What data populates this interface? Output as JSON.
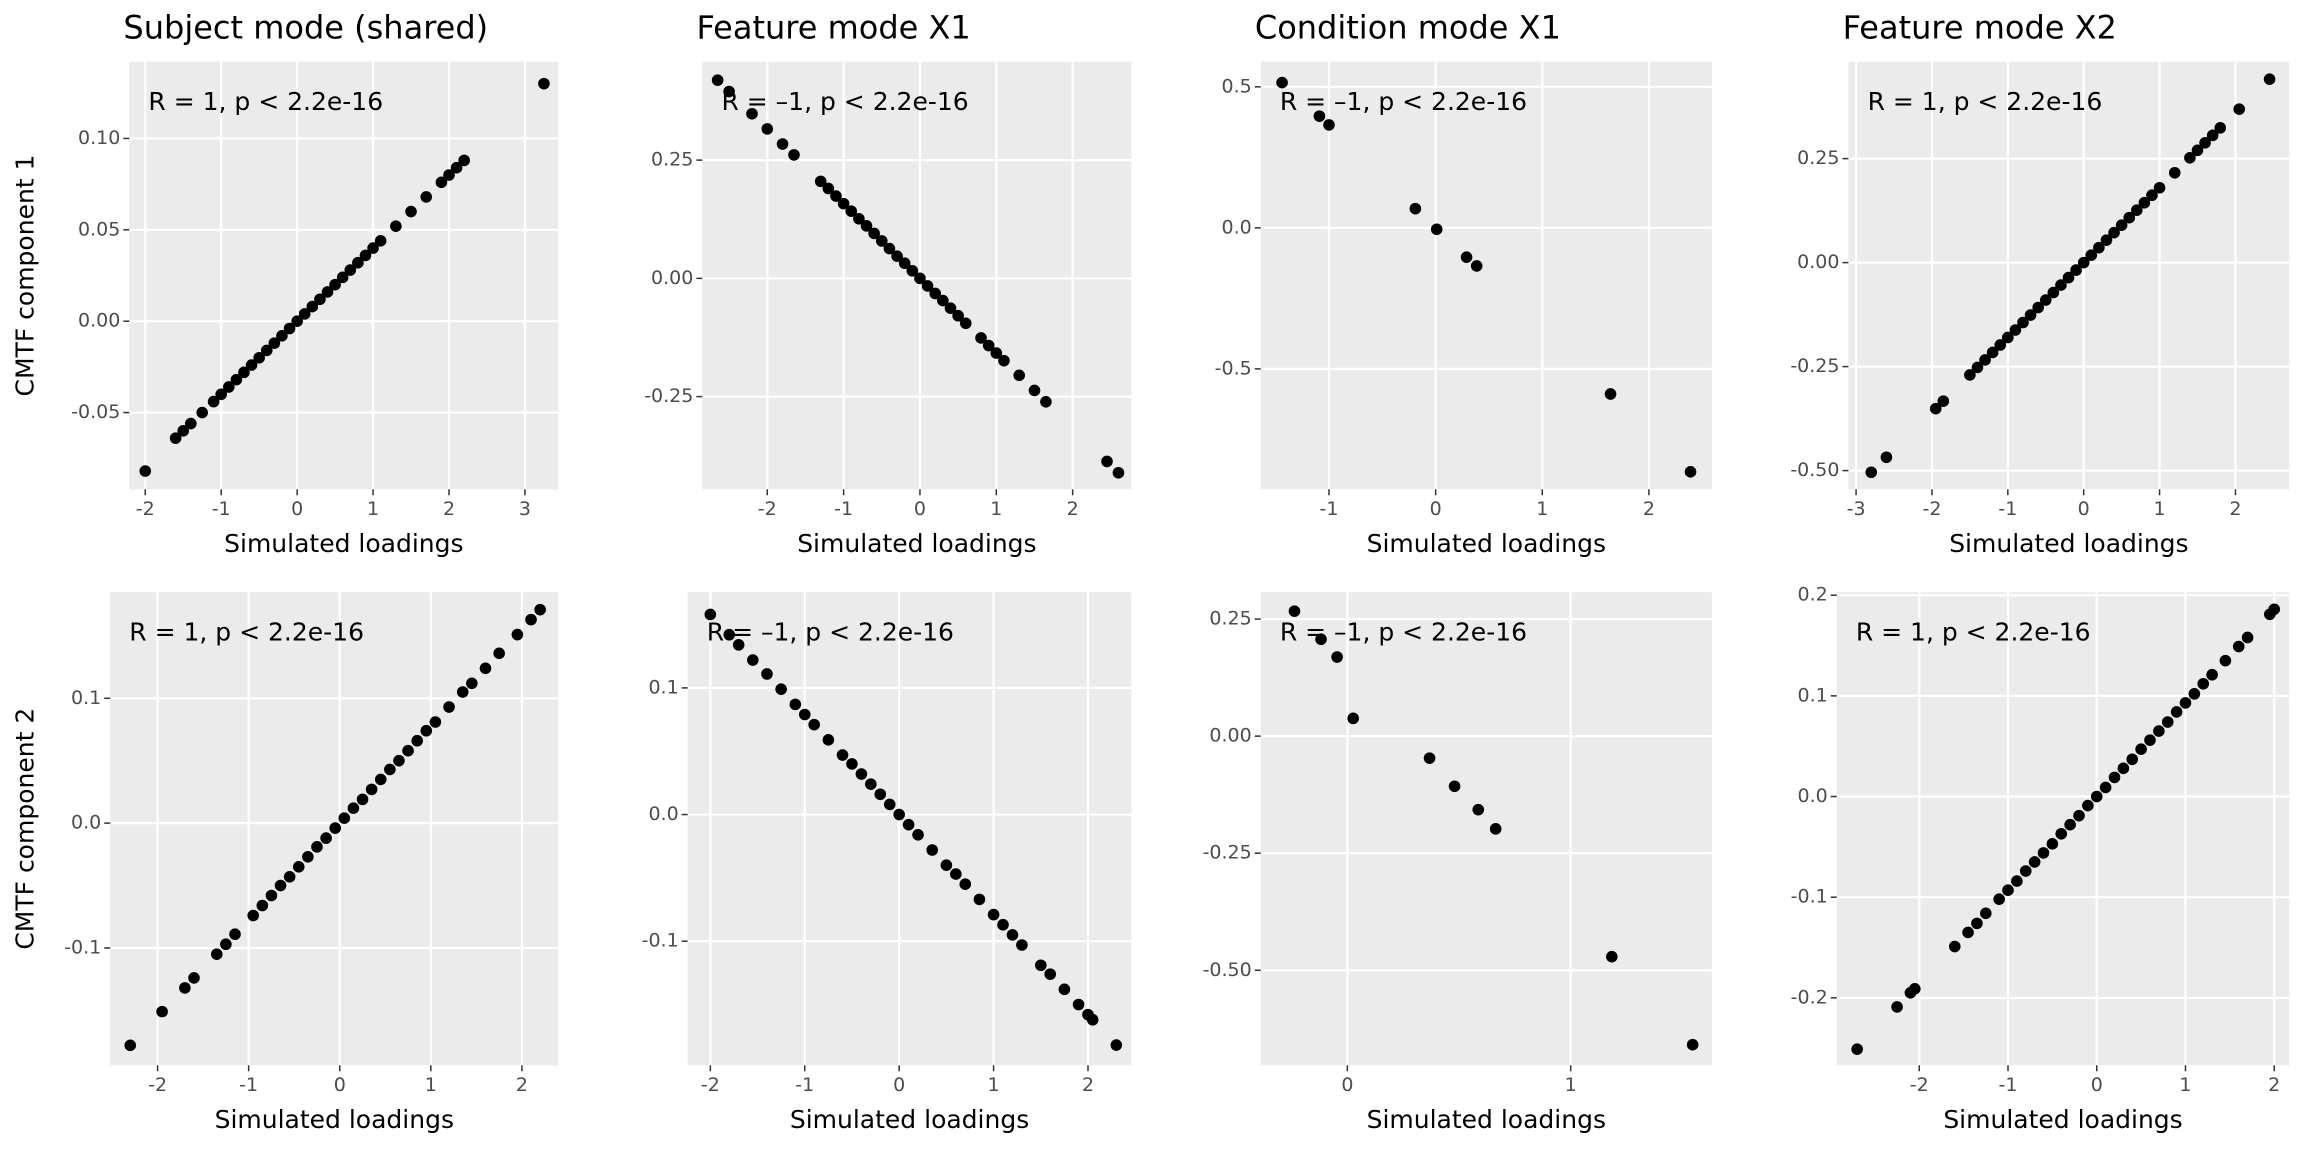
{
  "chart_data": [
    {
      "type": "scatter",
      "title": "Subject mode (shared)",
      "xlabel": "Simulated loadings",
      "ylabel": "CMTF component 1",
      "annotation": "R = 1, p < 2.2e-16",
      "color": "#000000",
      "grid": true,
      "x": [
        -2.0,
        -1.6,
        -1.5,
        -1.4,
        -1.25,
        -1.1,
        -1.0,
        -0.9,
        -0.8,
        -0.7,
        -0.6,
        -0.5,
        -0.4,
        -0.3,
        -0.2,
        -0.1,
        0,
        0.1,
        0.2,
        0.3,
        0.4,
        0.5,
        0.6,
        0.7,
        0.8,
        0.9,
        1.0,
        1.1,
        1.3,
        1.5,
        1.7,
        1.9,
        2.0,
        2.1,
        2.2,
        3.25
      ],
      "y": [
        -0.082,
        -0.064,
        -0.06,
        -0.056,
        -0.05,
        -0.044,
        -0.04,
        -0.036,
        -0.032,
        -0.028,
        -0.024,
        -0.02,
        -0.016,
        -0.012,
        -0.008,
        -0.004,
        0,
        0.004,
        0.008,
        0.012,
        0.016,
        0.02,
        0.024,
        0.028,
        0.032,
        0.036,
        0.04,
        0.044,
        0.052,
        0.06,
        0.068,
        0.076,
        0.08,
        0.084,
        0.088,
        0.13
      ],
      "xlim": [
        -2.21,
        3.44
      ],
      "ylim": [
        -0.092,
        0.142
      ],
      "xticks": [
        -2,
        -1,
        0,
        1,
        2,
        3
      ],
      "yticks": [
        -0.05,
        {
          "value": 0,
          "label": "0.00"
        },
        0.05,
        {
          "value": 0.1,
          "label": "0.10"
        }
      ]
    },
    {
      "type": "scatter",
      "title": "Feature mode X1",
      "xlabel": "Simulated loadings",
      "annotation": "R = –1, p < 2.2e-16",
      "color": "#000000",
      "grid": true,
      "x": [
        -2.65,
        -2.5,
        -2.2,
        -2.0,
        -1.8,
        -1.65,
        -1.3,
        -1.2,
        -1.1,
        -1.0,
        -0.9,
        -0.8,
        -0.7,
        -0.6,
        -0.5,
        -0.4,
        -0.3,
        -0.2,
        -0.1,
        0,
        0.1,
        0.2,
        0.3,
        0.4,
        0.5,
        0.6,
        0.8,
        0.9,
        1.0,
        1.1,
        1.3,
        1.5,
        1.65,
        2.45,
        2.6
      ],
      "y": [
        0.419,
        0.395,
        0.348,
        0.316,
        0.284,
        0.261,
        0.205,
        0.19,
        0.174,
        0.158,
        0.142,
        0.126,
        0.111,
        0.095,
        0.079,
        0.063,
        0.047,
        0.032,
        0.016,
        0,
        -0.016,
        -0.032,
        -0.047,
        -0.063,
        -0.079,
        -0.095,
        -0.126,
        -0.142,
        -0.158,
        -0.174,
        -0.205,
        -0.237,
        -0.261,
        -0.387,
        -0.411
      ],
      "xlim": [
        -2.85,
        2.77
      ],
      "ylim": [
        -0.446,
        0.458
      ],
      "xticks": [
        -2,
        -1,
        0,
        1,
        2
      ],
      "yticks": [
        -0.25,
        {
          "value": 0,
          "label": "0.00"
        },
        0.25
      ]
    },
    {
      "type": "scatter",
      "title": "Condition mode X1",
      "xlabel": "Simulated loadings",
      "annotation": "R = –1, p < 2.2e-16",
      "color": "#000000",
      "grid": true,
      "x": [
        -1.44,
        -1.09,
        -1.0,
        -0.19,
        0.01,
        0.29,
        0.385,
        1.64,
        2.39
      ],
      "y": [
        0.515,
        0.396,
        0.365,
        0.068,
        -0.005,
        -0.104,
        -0.135,
        -0.589,
        -0.865
      ],
      "xlim": [
        -1.64,
        2.59
      ],
      "ylim": [
        -0.927,
        0.589
      ],
      "xticks": [
        -1,
        0,
        1,
        2
      ],
      "yticks": [
        -0.5,
        {
          "value": 0,
          "label": "0.0"
        },
        0.5
      ]
    },
    {
      "type": "scatter",
      "title": "Feature mode X2",
      "xlabel": "Simulated loadings",
      "annotation": "R = 1, p < 2.2e-16",
      "color": "#000000",
      "grid": true,
      "x": [
        -2.8,
        -2.6,
        -1.95,
        -1.85,
        -1.5,
        -1.4,
        -1.3,
        -1.2,
        -1.1,
        -1.0,
        -0.9,
        -0.8,
        -0.7,
        -0.6,
        -0.5,
        -0.4,
        -0.3,
        -0.2,
        -0.1,
        0,
        0.1,
        0.2,
        0.3,
        0.4,
        0.5,
        0.6,
        0.7,
        0.8,
        0.9,
        1.0,
        1.2,
        1.4,
        1.5,
        1.6,
        1.7,
        1.8,
        2.05,
        2.45
      ],
      "y": [
        -0.504,
        -0.468,
        -0.351,
        -0.333,
        -0.27,
        -0.252,
        -0.234,
        -0.216,
        -0.198,
        -0.18,
        -0.162,
        -0.144,
        -0.126,
        -0.108,
        -0.09,
        -0.072,
        -0.054,
        -0.036,
        -0.018,
        0,
        0.018,
        0.036,
        0.054,
        0.072,
        0.09,
        0.108,
        0.126,
        0.144,
        0.162,
        0.18,
        0.216,
        0.252,
        0.27,
        0.288,
        0.306,
        0.324,
        0.369,
        0.441
      ],
      "xlim": [
        -3.1,
        2.71
      ],
      "ylim": [
        -0.545,
        0.483
      ],
      "xticks": [
        -3,
        -2,
        -1,
        0,
        1,
        2
      ],
      "yticks": [
        {
          "value": -0.5,
          "label": "-0.50"
        },
        -0.25,
        {
          "value": 0,
          "label": "0.00"
        },
        0.25
      ]
    },
    {
      "type": "scatter",
      "xlabel": "Simulated loadings",
      "ylabel": "CMTF component 2",
      "annotation": "R = 1, p < 2.2e-16",
      "color": "#000000",
      "grid": true,
      "x": [
        -2.3,
        -1.95,
        -1.7,
        -1.6,
        -1.35,
        -1.25,
        -1.15,
        -0.95,
        -0.85,
        -0.75,
        -0.65,
        -0.55,
        -0.45,
        -0.35,
        -0.25,
        -0.15,
        -0.05,
        0.05,
        0.15,
        0.25,
        0.35,
        0.45,
        0.55,
        0.65,
        0.75,
        0.85,
        0.95,
        1.05,
        1.2,
        1.35,
        1.45,
        1.6,
        1.75,
        1.95,
        2.1,
        2.2
      ],
      "y": [
        -0.178,
        -0.151,
        -0.132,
        -0.124,
        -0.105,
        -0.097,
        -0.089,
        -0.074,
        -0.066,
        -0.058,
        -0.05,
        -0.043,
        -0.035,
        -0.027,
        -0.019,
        -0.012,
        -0.004,
        0.004,
        0.012,
        0.019,
        0.027,
        0.035,
        0.043,
        0.05,
        0.058,
        0.066,
        0.074,
        0.081,
        0.093,
        0.105,
        0.112,
        0.124,
        0.136,
        0.151,
        0.163,
        0.171
      ],
      "xlim": [
        -2.52,
        2.4
      ],
      "ylim": [
        -0.194,
        0.185
      ],
      "xticks": [
        -2,
        -1,
        0,
        1,
        2
      ],
      "yticks": [
        -0.1,
        {
          "value": 0,
          "label": "0.0"
        },
        0.1
      ]
    },
    {
      "type": "scatter",
      "xlabel": "Simulated loadings",
      "annotation": "R = –1, p < 2.2e-16",
      "color": "#000000",
      "grid": true,
      "x": [
        -2.0,
        -1.8,
        -1.7,
        -1.55,
        -1.4,
        -1.25,
        -1.1,
        -1.0,
        -0.9,
        -0.75,
        -0.6,
        -0.5,
        -0.4,
        -0.3,
        -0.2,
        -0.1,
        0,
        0.1,
        0.2,
        0.35,
        0.5,
        0.6,
        0.7,
        0.85,
        1.0,
        1.1,
        1.2,
        1.3,
        1.5,
        1.6,
        1.75,
        1.9,
        2.0,
        2.05,
        2.3
      ],
      "y": [
        0.158,
        0.142,
        0.134,
        0.122,
        0.111,
        0.099,
        0.087,
        0.079,
        0.071,
        0.059,
        0.047,
        0.04,
        0.032,
        0.024,
        0.016,
        0.008,
        0,
        -0.008,
        -0.016,
        -0.028,
        -0.04,
        -0.047,
        -0.055,
        -0.067,
        -0.079,
        -0.087,
        -0.095,
        -0.103,
        -0.119,
        -0.126,
        -0.138,
        -0.15,
        -0.158,
        -0.162,
        -0.182
      ],
      "xlim": [
        -2.24,
        2.46
      ],
      "ylim": [
        -0.198,
        0.1756
      ],
      "xticks": [
        -2,
        -1,
        0,
        1,
        2
      ],
      "yticks": [
        -0.1,
        {
          "value": 0,
          "label": "0.0"
        },
        0.1
      ]
    },
    {
      "type": "scatter",
      "xlabel": "Simulated loadings",
      "annotation": "R = –1, p < 2.2e-16",
      "color": "#000000",
      "grid": true,
      "x": [
        -0.237,
        -0.118,
        -0.046,
        0.026,
        0.368,
        0.48,
        0.586,
        0.664,
        1.184,
        1.546
      ],
      "y": [
        0.267,
        0.207,
        0.169,
        0.038,
        -0.047,
        -0.107,
        -0.157,
        -0.198,
        -0.471,
        -0.659
      ],
      "xlim": [
        -0.388,
        1.632
      ],
      "ylim": [
        -0.703,
        0.3075
      ],
      "xticks": [
        0,
        1
      ],
      "yticks": [
        {
          "value": -0.5,
          "label": "-0.50"
        },
        -0.25,
        {
          "value": 0,
          "label": "0.00"
        },
        0.25
      ]
    },
    {
      "type": "scatter",
      "xlabel": "Simulated loadings",
      "annotation": "R = 1, p < 2.2e-16",
      "color": "#000000",
      "grid": true,
      "x": [
        -2.7,
        -2.25,
        -2.1,
        -2.05,
        -1.6,
        -1.45,
        -1.35,
        -1.25,
        -1.1,
        -1.0,
        -0.9,
        -0.8,
        -0.7,
        -0.6,
        -0.5,
        -0.4,
        -0.3,
        -0.2,
        -0.1,
        0,
        0.1,
        0.2,
        0.3,
        0.4,
        0.5,
        0.6,
        0.7,
        0.8,
        0.9,
        1.0,
        1.1,
        1.2,
        1.3,
        1.45,
        1.6,
        1.7,
        1.95,
        2.0
      ],
      "y": [
        -0.251,
        -0.209,
        -0.195,
        -0.191,
        -0.149,
        -0.135,
        -0.126,
        -0.116,
        -0.102,
        -0.093,
        -0.084,
        -0.074,
        -0.065,
        -0.056,
        -0.047,
        -0.037,
        -0.028,
        -0.019,
        -0.009,
        0,
        0.009,
        0.019,
        0.028,
        0.037,
        0.047,
        0.056,
        0.065,
        0.074,
        0.084,
        0.093,
        0.102,
        0.112,
        0.121,
        0.135,
        0.149,
        0.158,
        0.181,
        0.186
      ],
      "xlim": [
        -2.93,
        2.17
      ],
      "ylim": [
        -0.267,
        0.203
      ],
      "xticks": [
        -2,
        -1,
        0,
        1,
        2
      ],
      "yticks": [
        -0.2,
        -0.1,
        {
          "value": 0,
          "label": "0.0"
        },
        0.1,
        0.2
      ]
    }
  ]
}
